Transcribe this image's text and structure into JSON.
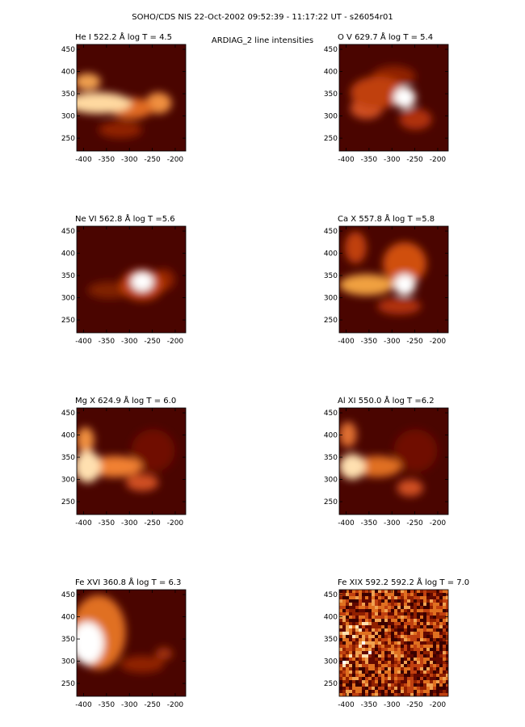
{
  "title": "SOHO/CDS NIS  22-Oct-2002 09:52:39 - 11:17:22 UT - s26054r01",
  "subtitle": "ARDIAG_2 line intensities",
  "chart_data": [
    {
      "type": "image",
      "title": "He I  522.2 Å log T = 4.5",
      "xlim": [
        -415,
        -177
      ],
      "ylim": [
        221,
        461
      ],
      "xticks": [
        -400,
        -350,
        -300,
        -250,
        -200
      ],
      "yticks": [
        250,
        300,
        350,
        400,
        450
      ]
    },
    {
      "type": "image",
      "title": "O V  629.7 Å log T = 5.4",
      "xlim": [
        -415,
        -177
      ],
      "ylim": [
        221,
        461
      ],
      "xticks": [
        -400,
        -350,
        -300,
        -250,
        -200
      ],
      "yticks": [
        250,
        300,
        350,
        400,
        450
      ]
    },
    {
      "type": "image",
      "title": "Ne VI  562.8 Å log T =5.6",
      "xlim": [
        -415,
        -177
      ],
      "ylim": [
        221,
        461
      ],
      "xticks": [
        -400,
        -350,
        -300,
        -250,
        -200
      ],
      "yticks": [
        250,
        300,
        350,
        400,
        450
      ]
    },
    {
      "type": "image",
      "title": "Ca X  557.8 Å log T =5.8",
      "xlim": [
        -415,
        -177
      ],
      "ylim": [
        221,
        461
      ],
      "xticks": [
        -400,
        -350,
        -300,
        -250,
        -200
      ],
      "yticks": [
        250,
        300,
        350,
        400,
        450
      ]
    },
    {
      "type": "image",
      "title": "Mg X  624.9 Å log T = 6.0",
      "xlim": [
        -415,
        -177
      ],
      "ylim": [
        221,
        461
      ],
      "xticks": [
        -400,
        -350,
        -300,
        -250,
        -200
      ],
      "yticks": [
        250,
        300,
        350,
        400,
        450
      ]
    },
    {
      "type": "image",
      "title": "Al XI  550.0 Å log T =6.2",
      "xlim": [
        -415,
        -177
      ],
      "ylim": [
        221,
        461
      ],
      "xticks": [
        -400,
        -350,
        -300,
        -250,
        -200
      ],
      "yticks": [
        250,
        300,
        350,
        400,
        450
      ]
    },
    {
      "type": "image",
      "title": "Fe XVI  360.8 Å log T = 6.3",
      "xlim": [
        -415,
        -177
      ],
      "ylim": [
        221,
        461
      ],
      "xticks": [
        -400,
        -350,
        -300,
        -250,
        -200
      ],
      "yticks": [
        250,
        300,
        350,
        400,
        450
      ]
    },
    {
      "type": "image",
      "title": "Fe XIX 592.2  592.2 Å log T = 7.0",
      "xlim": [
        -415,
        -177
      ],
      "ylim": [
        221,
        461
      ],
      "xticks": [
        -400,
        -350,
        -300,
        -250,
        -200
      ],
      "yticks": [
        250,
        300,
        350,
        400,
        450
      ]
    }
  ]
}
